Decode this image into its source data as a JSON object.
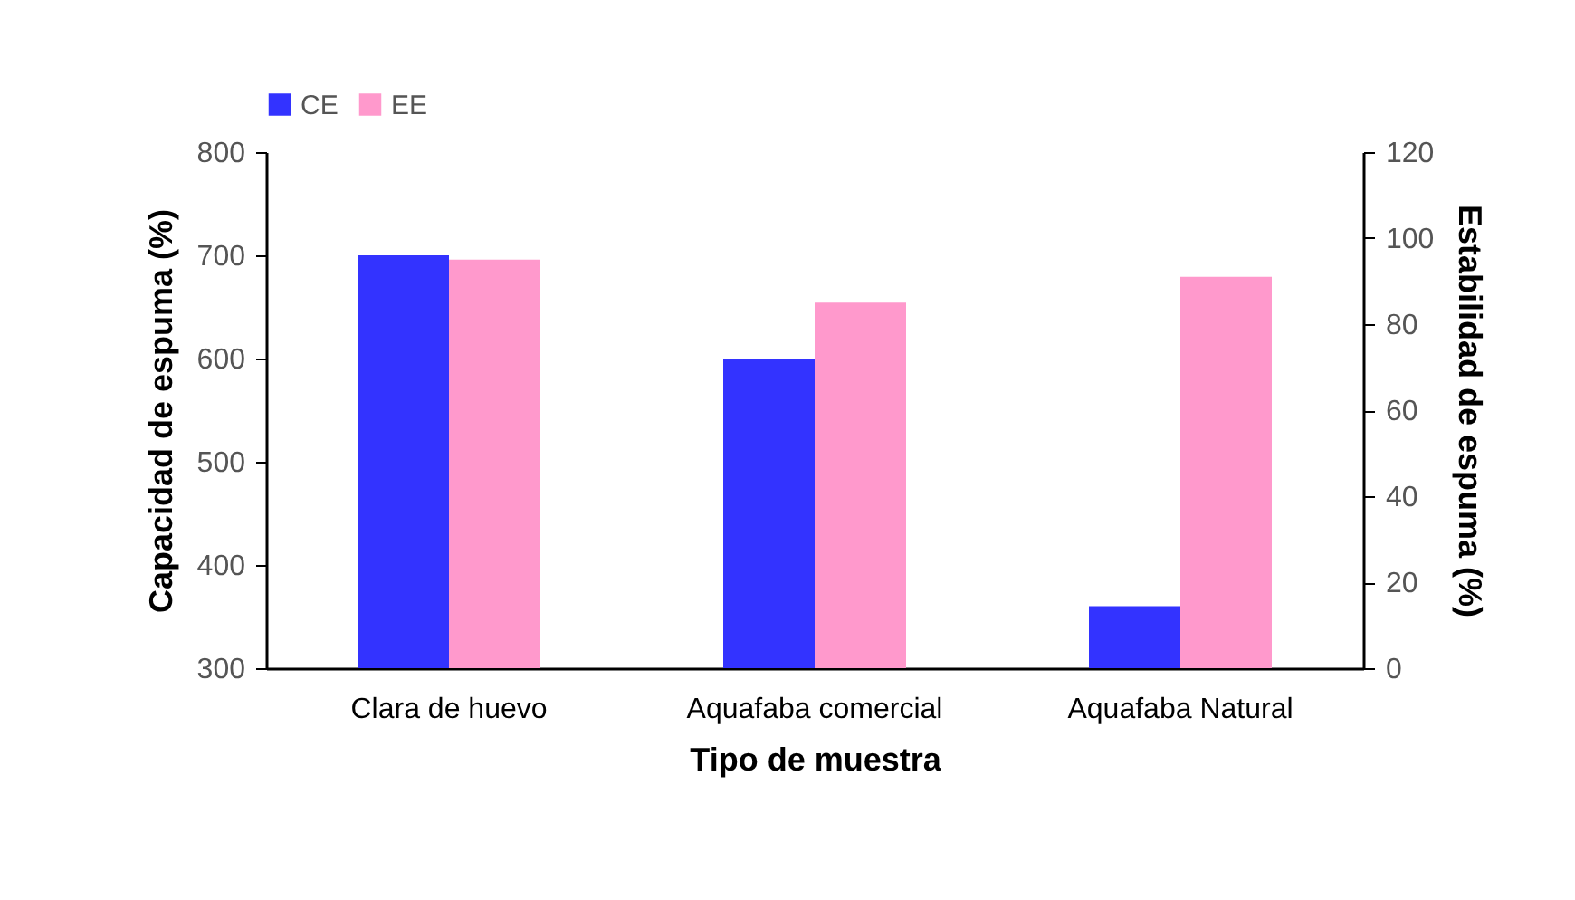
{
  "chart_data": {
    "type": "bar",
    "xlabel": "Tipo de muestra",
    "ylabel": "Capacidad de espuma (%)",
    "y2label": "Estabilidad de espuma (%)",
    "categories": [
      "Clara de huevo",
      "Aquafaba comercial",
      "Aquafaba Natural"
    ],
    "series": [
      {
        "name": "CE",
        "color": "#3333ff",
        "values": [
          700,
          600,
          360
        ]
      },
      {
        "name": "EE",
        "color": "#ff99cc",
        "values": [
          95,
          85,
          91
        ],
        "axis": "y2"
      }
    ],
    "ylim": [
      300,
      800
    ],
    "yticks": [
      300,
      400,
      500,
      600,
      700,
      800
    ],
    "y2lim": [
      0,
      120
    ],
    "y2ticks": [
      0,
      20,
      40,
      60,
      80,
      100,
      120
    ],
    "grid": false,
    "legend": "top"
  }
}
